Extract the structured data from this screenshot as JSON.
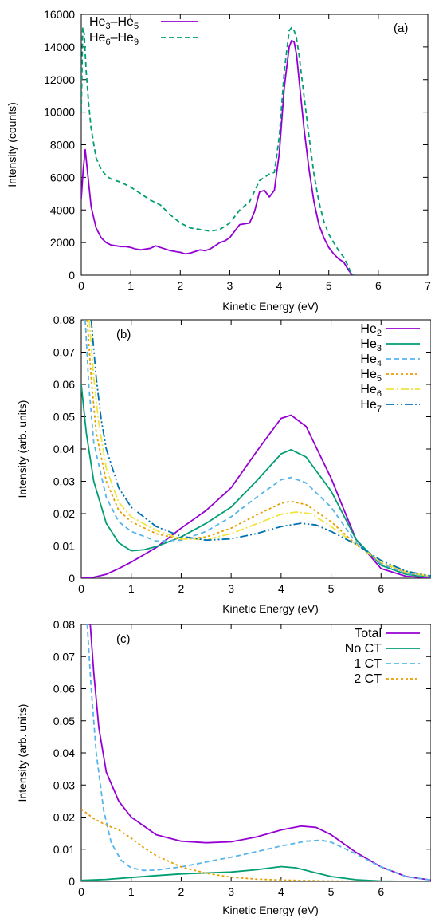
{
  "chart_data": [
    {
      "panel": "(a)",
      "type": "line",
      "xlabel": "Kinetic Energy (eV)",
      "ylabel": "Intensity (counts)",
      "xlim": [
        0,
        7
      ],
      "ylim": [
        0,
        16000
      ],
      "xticks": [
        "0",
        "1",
        "2",
        "3",
        "4",
        "5",
        "6",
        "7"
      ],
      "yticks": [
        "0",
        "2000",
        "4000",
        "6000",
        "8000",
        "10000",
        "12000",
        "14000",
        "16000"
      ],
      "legend_position": "top-left",
      "series": [
        {
          "name": "He3–He5",
          "label_base": "He",
          "label_sub1": "3",
          "label_mid": "–He",
          "label_sub2": "5",
          "color": "#9400d3",
          "dash": "",
          "x": [
            0,
            0.04,
            0.08,
            0.12,
            0.2,
            0.3,
            0.4,
            0.5,
            0.6,
            0.7,
            0.8,
            0.9,
            1.0,
            1.1,
            1.2,
            1.3,
            1.4,
            1.5,
            1.6,
            1.7,
            1.8,
            1.9,
            2.0,
            2.1,
            2.2,
            2.3,
            2.4,
            2.5,
            2.6,
            2.7,
            2.8,
            2.9,
            3.0,
            3.1,
            3.2,
            3.3,
            3.4,
            3.5,
            3.6,
            3.7,
            3.8,
            3.9,
            4.0,
            4.1,
            4.2,
            4.25,
            4.3,
            4.35,
            4.4,
            4.5,
            4.6,
            4.7,
            4.8,
            4.9,
            5.0,
            5.1,
            5.2,
            5.3,
            5.4,
            5.45,
            5.5
          ],
          "y": [
            4700,
            6500,
            7700,
            6500,
            4200,
            2900,
            2300,
            2000,
            1850,
            1800,
            1750,
            1750,
            1700,
            1600,
            1550,
            1600,
            1650,
            1800,
            1700,
            1600,
            1500,
            1450,
            1400,
            1300,
            1350,
            1450,
            1550,
            1500,
            1600,
            1800,
            2000,
            2100,
            2300,
            2700,
            3100,
            3150,
            3200,
            3900,
            5100,
            5200,
            4800,
            5200,
            7500,
            11500,
            14000,
            14400,
            14300,
            13500,
            12000,
            9000,
            6500,
            4500,
            3100,
            2300,
            1700,
            1300,
            1000,
            800,
            300,
            100,
            0
          ]
        },
        {
          "name": "He6–He9",
          "label_base": "He",
          "label_sub1": "6",
          "label_mid": "–He",
          "label_sub2": "9",
          "color": "#009e73",
          "dash": "6,4",
          "x": [
            0,
            0.03,
            0.06,
            0.1,
            0.15,
            0.2,
            0.3,
            0.4,
            0.5,
            0.6,
            0.8,
            1.0,
            1.2,
            1.4,
            1.6,
            1.8,
            2.0,
            2.2,
            2.4,
            2.6,
            2.8,
            3.0,
            3.2,
            3.4,
            3.6,
            3.8,
            3.9,
            4.0,
            4.1,
            4.2,
            4.25,
            4.3,
            4.35,
            4.4,
            4.5,
            4.6,
            4.7,
            4.8,
            4.9,
            5.0,
            5.1,
            5.2,
            5.3,
            5.4,
            5.45,
            5.5
          ],
          "y": [
            10000,
            15200,
            14800,
            12500,
            10500,
            9000,
            7200,
            6500,
            6100,
            5900,
            5700,
            5400,
            5000,
            4600,
            4300,
            3700,
            3200,
            2900,
            2800,
            2700,
            2800,
            3200,
            4000,
            4500,
            5800,
            6200,
            6300,
            8500,
            12500,
            15000,
            15200,
            15000,
            14500,
            13500,
            11000,
            8500,
            6200,
            4500,
            3300,
            2500,
            2000,
            1500,
            1100,
            500,
            100,
            0
          ]
        }
      ]
    },
    {
      "panel": "(b)",
      "type": "line",
      "xlabel": "Kinetic Energy (eV)",
      "ylabel": "Intensity (arb. units)",
      "xlim": [
        0,
        7
      ],
      "ylim": [
        0,
        0.08
      ],
      "xticks": [
        "0",
        "1",
        "2",
        "3",
        "4",
        "5",
        "6"
      ],
      "yticks": [
        "0",
        "0.01",
        "0.02",
        "0.03",
        "0.04",
        "0.05",
        "0.06",
        "0.07",
        "0.08"
      ],
      "legend_position": "top-right",
      "series": [
        {
          "name": "He2",
          "label_base": "He",
          "label_sub1": "2",
          "color": "#9400d3",
          "dash": "",
          "x": [
            0,
            0.25,
            0.5,
            0.75,
            1,
            1.5,
            2,
            2.5,
            3,
            3.5,
            4,
            4.2,
            4.5,
            5,
            5.5,
            6,
            6.5,
            7
          ],
          "y": [
            0,
            0.0003,
            0.0012,
            0.003,
            0.005,
            0.0095,
            0.0155,
            0.021,
            0.028,
            0.039,
            0.0495,
            0.0505,
            0.047,
            0.031,
            0.012,
            0.003,
            0.0006,
            0.0001
          ]
        },
        {
          "name": "He3",
          "label_base": "He",
          "label_sub1": "3",
          "color": "#009e73",
          "dash": "",
          "x": [
            0,
            0.1,
            0.25,
            0.5,
            0.75,
            1,
            1.25,
            1.5,
            2,
            2.5,
            3,
            3.5,
            4,
            4.2,
            4.5,
            5,
            5.5,
            6,
            6.5,
            7
          ],
          "y": [
            0.06,
            0.045,
            0.03,
            0.017,
            0.011,
            0.0085,
            0.0088,
            0.0098,
            0.0128,
            0.017,
            0.022,
            0.03,
            0.0385,
            0.0398,
            0.0375,
            0.027,
            0.012,
            0.004,
            0.0012,
            0.0003
          ]
        },
        {
          "name": "He4",
          "label_base": "He",
          "label_sub1": "4",
          "color": "#56b4e9",
          "dash": "6,4",
          "x": [
            0.08,
            0.15,
            0.25,
            0.5,
            0.75,
            1,
            1.5,
            2,
            2.5,
            3,
            3.5,
            4,
            4.2,
            4.5,
            5,
            5.5,
            6,
            6.5,
            7
          ],
          "y": [
            0.08,
            0.06,
            0.042,
            0.025,
            0.0175,
            0.0145,
            0.0115,
            0.0118,
            0.0145,
            0.019,
            0.025,
            0.0305,
            0.0312,
            0.0295,
            0.022,
            0.011,
            0.0045,
            0.0015,
            0.0004
          ]
        },
        {
          "name": "He5",
          "label_base": "He",
          "label_sub1": "5",
          "color": "#e69f00",
          "dash": "3,3",
          "x": [
            0.12,
            0.2,
            0.3,
            0.5,
            0.75,
            1,
            1.5,
            2,
            2.5,
            3,
            3.5,
            4,
            4.2,
            4.5,
            5,
            5.5,
            6,
            6.5,
            7
          ],
          "y": [
            0.08,
            0.062,
            0.045,
            0.03,
            0.021,
            0.0175,
            0.0138,
            0.012,
            0.0128,
            0.0155,
            0.0195,
            0.0232,
            0.0238,
            0.0228,
            0.0175,
            0.0105,
            0.0048,
            0.0018,
            0.0005
          ]
        },
        {
          "name": "He6",
          "label_base": "He",
          "label_sub1": "6",
          "color": "#f0e442",
          "dash": "10,3,2,3",
          "x": [
            0.16,
            0.25,
            0.35,
            0.5,
            0.75,
            1,
            1.5,
            2,
            2.5,
            3,
            3.5,
            4,
            4.3,
            4.6,
            5,
            5.5,
            6,
            6.5,
            7
          ],
          "y": [
            0.08,
            0.062,
            0.048,
            0.034,
            0.0235,
            0.019,
            0.0148,
            0.0122,
            0.012,
            0.0138,
            0.0168,
            0.0198,
            0.0205,
            0.02,
            0.016,
            0.0105,
            0.005,
            0.002,
            0.0006
          ]
        },
        {
          "name": "He7",
          "label_base": "He",
          "label_sub1": "7",
          "color": "#0072b2",
          "dash": "10,3,2,3,2,3",
          "x": [
            0.2,
            0.3,
            0.4,
            0.5,
            0.75,
            1,
            1.5,
            2,
            2.5,
            3,
            3.5,
            4,
            4.4,
            4.7,
            5,
            5.5,
            6,
            6.5,
            7
          ],
          "y": [
            0.08,
            0.062,
            0.049,
            0.04,
            0.028,
            0.022,
            0.016,
            0.013,
            0.0118,
            0.0122,
            0.0138,
            0.016,
            0.017,
            0.0165,
            0.0145,
            0.0105,
            0.0055,
            0.0022,
            0.0007
          ]
        }
      ]
    },
    {
      "panel": "(c)",
      "type": "line",
      "xlabel": "Kinetic Energy (eV)",
      "ylabel": "Intensity (arb. units)",
      "xlim": [
        0,
        7
      ],
      "ylim": [
        0,
        0.08
      ],
      "xticks": [
        "0",
        "1",
        "2",
        "3",
        "4",
        "5",
        "6"
      ],
      "yticks": [
        "0",
        "0.01",
        "0.02",
        "0.03",
        "0.04",
        "0.05",
        "0.06",
        "0.07",
        "0.08"
      ],
      "legend_position": "top-right",
      "series": [
        {
          "name": "Total",
          "label_base": "Total",
          "color": "#9400d3",
          "dash": "",
          "x": [
            0.18,
            0.25,
            0.35,
            0.5,
            0.75,
            1,
            1.5,
            2,
            2.5,
            3,
            3.5,
            4,
            4.4,
            4.7,
            5,
            5.5,
            6,
            6.5,
            7
          ],
          "y": [
            0.08,
            0.065,
            0.048,
            0.034,
            0.025,
            0.02,
            0.0145,
            0.0125,
            0.012,
            0.0123,
            0.0138,
            0.016,
            0.0172,
            0.0168,
            0.0145,
            0.009,
            0.0045,
            0.0015,
            0.0004
          ]
        },
        {
          "name": "No CT",
          "label_base": "No CT",
          "color": "#009e73",
          "dash": "",
          "x": [
            0,
            0.5,
            1,
            1.5,
            2,
            2.5,
            3,
            3.5,
            4,
            4.3,
            4.6,
            5,
            5.5,
            6,
            6.5,
            7
          ],
          "y": [
            0.0003,
            0.0006,
            0.0012,
            0.0018,
            0.0023,
            0.0026,
            0.0029,
            0.0036,
            0.0046,
            0.0042,
            0.003,
            0.0015,
            0.0005,
            0.0001,
            0,
            0
          ]
        },
        {
          "name": "1 CT",
          "label_base": "1 CT",
          "color": "#56b4e9",
          "dash": "6,4",
          "x": [
            0.12,
            0.2,
            0.3,
            0.45,
            0.6,
            0.8,
            1,
            1.25,
            1.5,
            2,
            2.5,
            3,
            3.5,
            4,
            4.5,
            4.8,
            5,
            5.5,
            6,
            6.5,
            7
          ],
          "y": [
            0.08,
            0.06,
            0.04,
            0.022,
            0.012,
            0.0065,
            0.0042,
            0.0034,
            0.0035,
            0.0045,
            0.006,
            0.0075,
            0.0092,
            0.011,
            0.0125,
            0.0128,
            0.0122,
            0.0085,
            0.0045,
            0.0015,
            0.0004
          ]
        },
        {
          "name": "2 CT",
          "label_base": "2 CT",
          "color": "#e69f00",
          "dash": "3,3",
          "x": [
            0,
            0.25,
            0.5,
            0.75,
            1,
            1.25,
            1.5,
            2,
            2.5,
            3,
            3.5,
            4,
            5,
            6,
            7
          ],
          "y": [
            0.0225,
            0.0195,
            0.0175,
            0.016,
            0.0135,
            0.0105,
            0.008,
            0.0045,
            0.0025,
            0.0013,
            0.0007,
            0.0004,
            0.0001,
            0,
            0
          ]
        }
      ]
    }
  ]
}
